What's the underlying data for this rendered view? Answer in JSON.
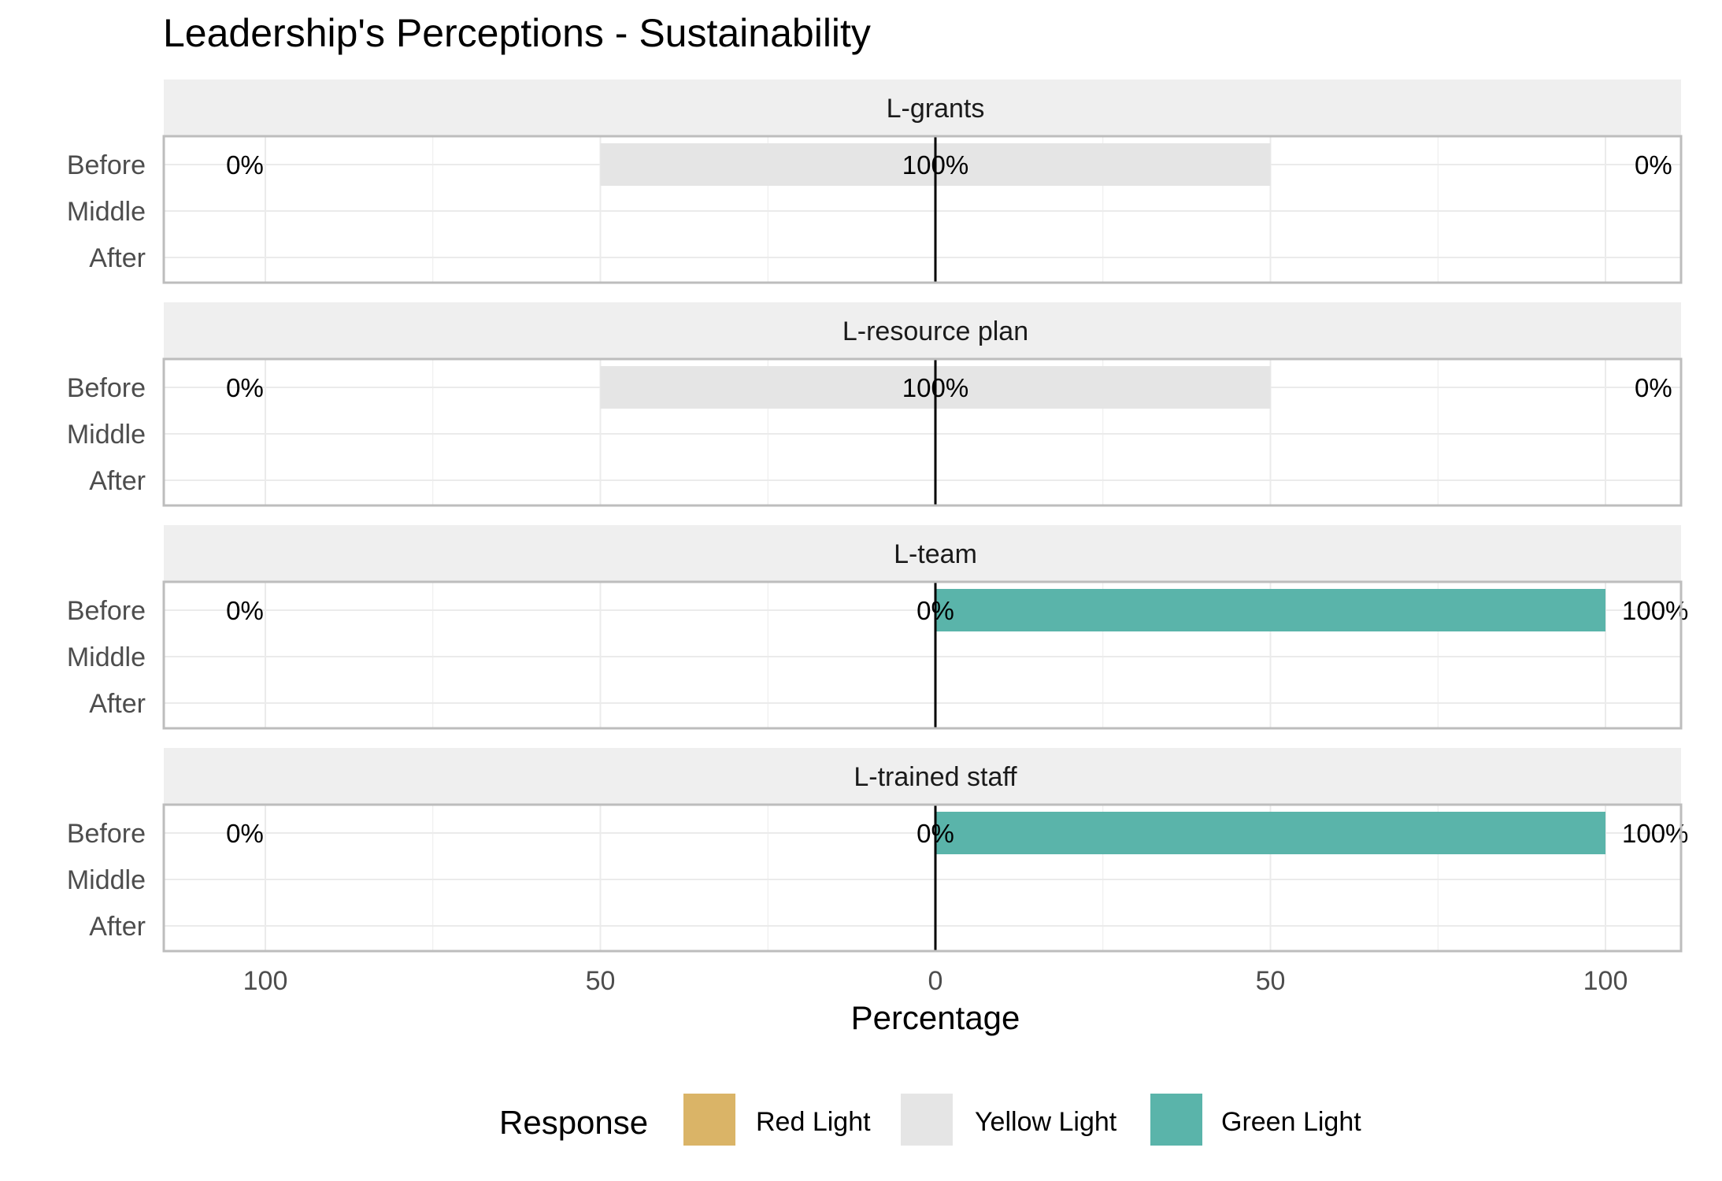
{
  "chart_data": {
    "type": "bar",
    "orientation": "horizontal-diverging",
    "title": "Leadership's Perceptions - Sustainability",
    "xlabel": "Percentage",
    "ylabel": "",
    "xlim": [
      -100,
      100
    ],
    "x_ticks": [
      -100,
      -50,
      0,
      50,
      100
    ],
    "x_tick_labels": [
      "100",
      "50",
      "0",
      "50",
      "100"
    ],
    "categories": [
      "Before",
      "Middle",
      "After"
    ],
    "grid": true,
    "legend": {
      "title": "Response",
      "position": "bottom",
      "items": [
        {
          "name": "Red Light",
          "color": "#dab467"
        },
        {
          "name": "Yellow Light",
          "color": "#e5e5e5"
        },
        {
          "name": "Green Light",
          "color": "#5ab4aa"
        }
      ]
    },
    "panels": [
      {
        "name": "L-grants",
        "rows": [
          {
            "category": "Before",
            "red": 0,
            "yellow": 100,
            "green": 0,
            "labels": {
              "left": "0%",
              "center": "100%",
              "right": "0%"
            }
          }
        ]
      },
      {
        "name": "L-resource plan",
        "rows": [
          {
            "category": "Before",
            "red": 0,
            "yellow": 100,
            "green": 0,
            "labels": {
              "left": "0%",
              "center": "100%",
              "right": "0%"
            }
          }
        ]
      },
      {
        "name": "L-team",
        "rows": [
          {
            "category": "Before",
            "red": 0,
            "yellow": 0,
            "green": 100,
            "labels": {
              "left": "0%",
              "center": "0%",
              "right": "100%"
            }
          }
        ]
      },
      {
        "name": "L-trained staff",
        "rows": [
          {
            "category": "Before",
            "red": 0,
            "yellow": 0,
            "green": 100,
            "labels": {
              "left": "0%",
              "center": "0%",
              "right": "100%"
            }
          }
        ]
      }
    ]
  }
}
